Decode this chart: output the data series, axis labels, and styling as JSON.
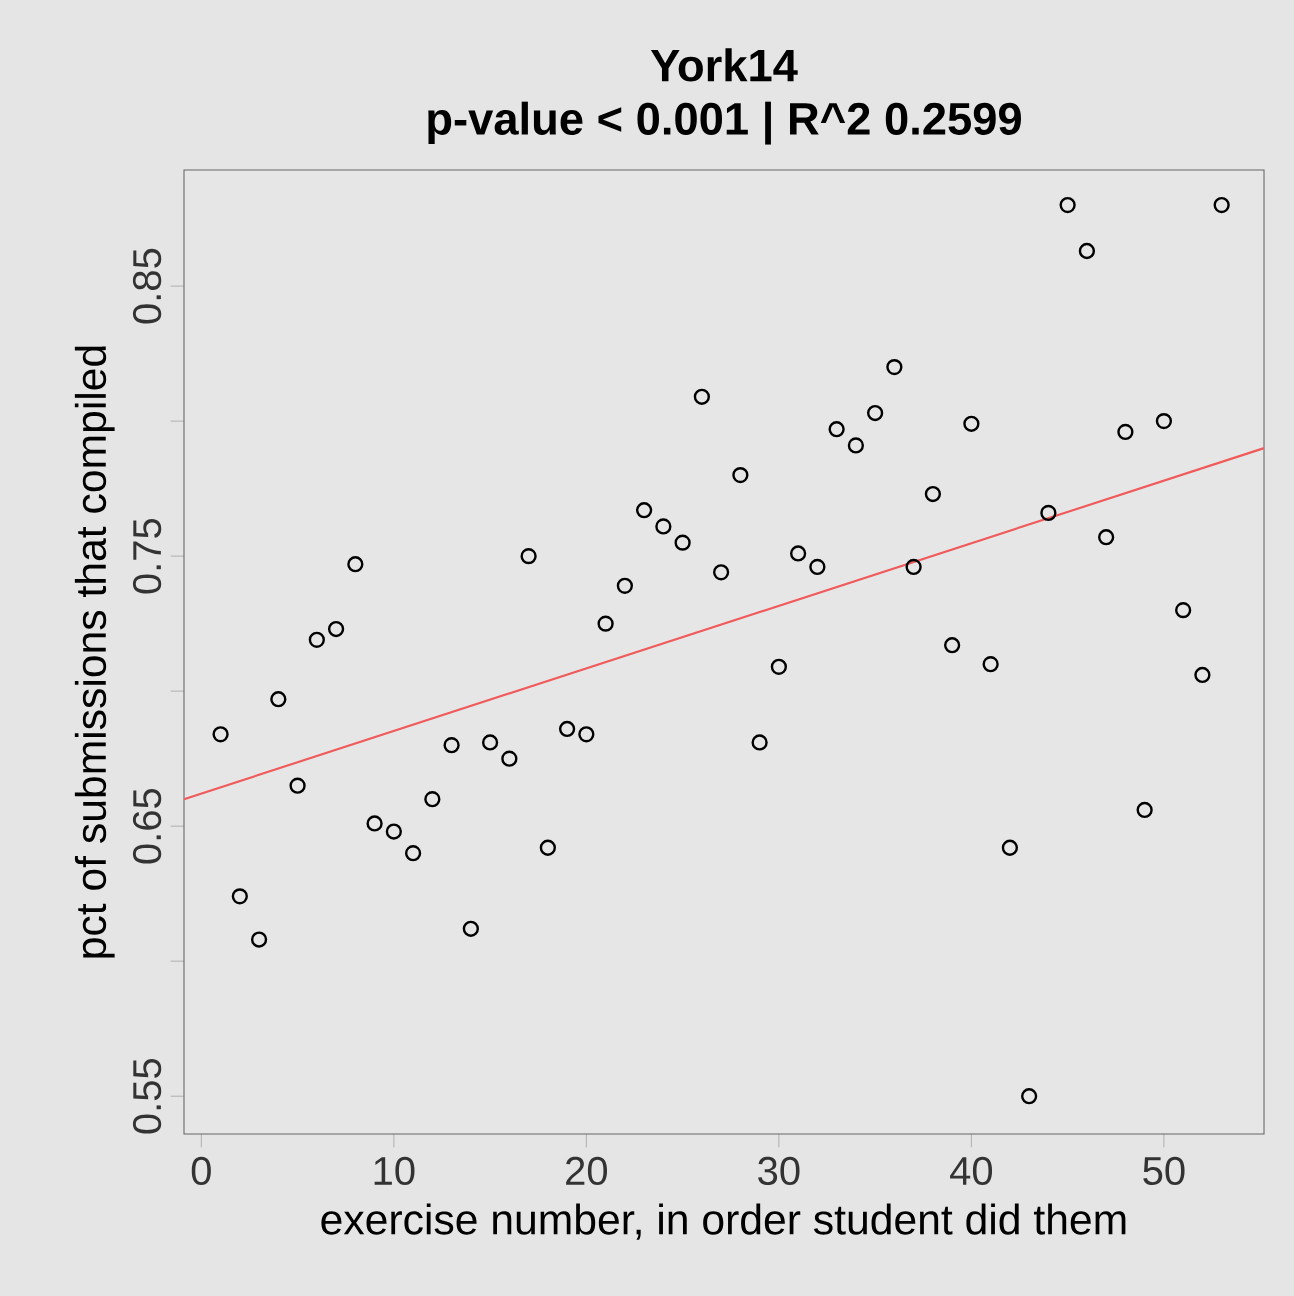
{
  "chart_data": {
    "type": "scatter",
    "title": "York14",
    "subtitle": "p-value < 0.001  |  R^2 0.2599",
    "xlabel": "exercise number, in order student did them",
    "ylabel": "pct of submissions that compiled",
    "xlim": [
      -0.9,
      55.2
    ],
    "ylim": [
      0.536,
      0.893
    ],
    "xticks": [
      0,
      10,
      20,
      30,
      40,
      50
    ],
    "yticks": [
      0.55,
      {
        "value": 0.6,
        "label": null
      },
      0.65,
      {
        "value": 0.7,
        "label": null
      },
      0.75,
      {
        "value": 0.8,
        "label": null
      },
      0.85
    ],
    "grid": false,
    "series": [
      {
        "marker": "circle",
        "color": "#000000",
        "x": [
          1,
          2,
          3,
          4,
          5,
          6,
          7,
          8,
          9,
          10,
          11,
          12,
          13,
          14,
          15,
          16,
          17,
          18,
          19,
          20,
          21,
          22,
          23,
          24,
          25,
          26,
          27,
          28,
          29,
          30,
          31,
          32,
          33,
          34,
          35,
          36,
          37,
          38,
          39,
          40,
          41,
          42,
          43,
          44,
          45,
          46,
          47,
          48,
          49,
          50,
          51,
          52,
          53
        ],
        "values": [
          0.684,
          0.624,
          0.608,
          0.697,
          0.665,
          0.719,
          0.723,
          0.747,
          0.651,
          0.648,
          0.64,
          0.66,
          0.68,
          0.612,
          0.681,
          0.675,
          0.75,
          0.642,
          0.686,
          0.684,
          0.725,
          0.739,
          0.767,
          0.761,
          0.755,
          0.809,
          0.744,
          0.78,
          0.681,
          0.709,
          0.751,
          0.746,
          0.797,
          0.791,
          0.803,
          0.82,
          0.746,
          0.773,
          0.717,
          0.799,
          0.71,
          0.642,
          0.55,
          0.766,
          0.88,
          0.863,
          0.757,
          0.796,
          0.656,
          0.8,
          0.73,
          0.706,
          0.88
        ]
      },
      {
        "type": "line",
        "marker": "none",
        "color": "#f05a5a",
        "x": [
          -0.9,
          55.2
        ],
        "values": [
          0.66,
          0.79
        ]
      }
    ]
  }
}
